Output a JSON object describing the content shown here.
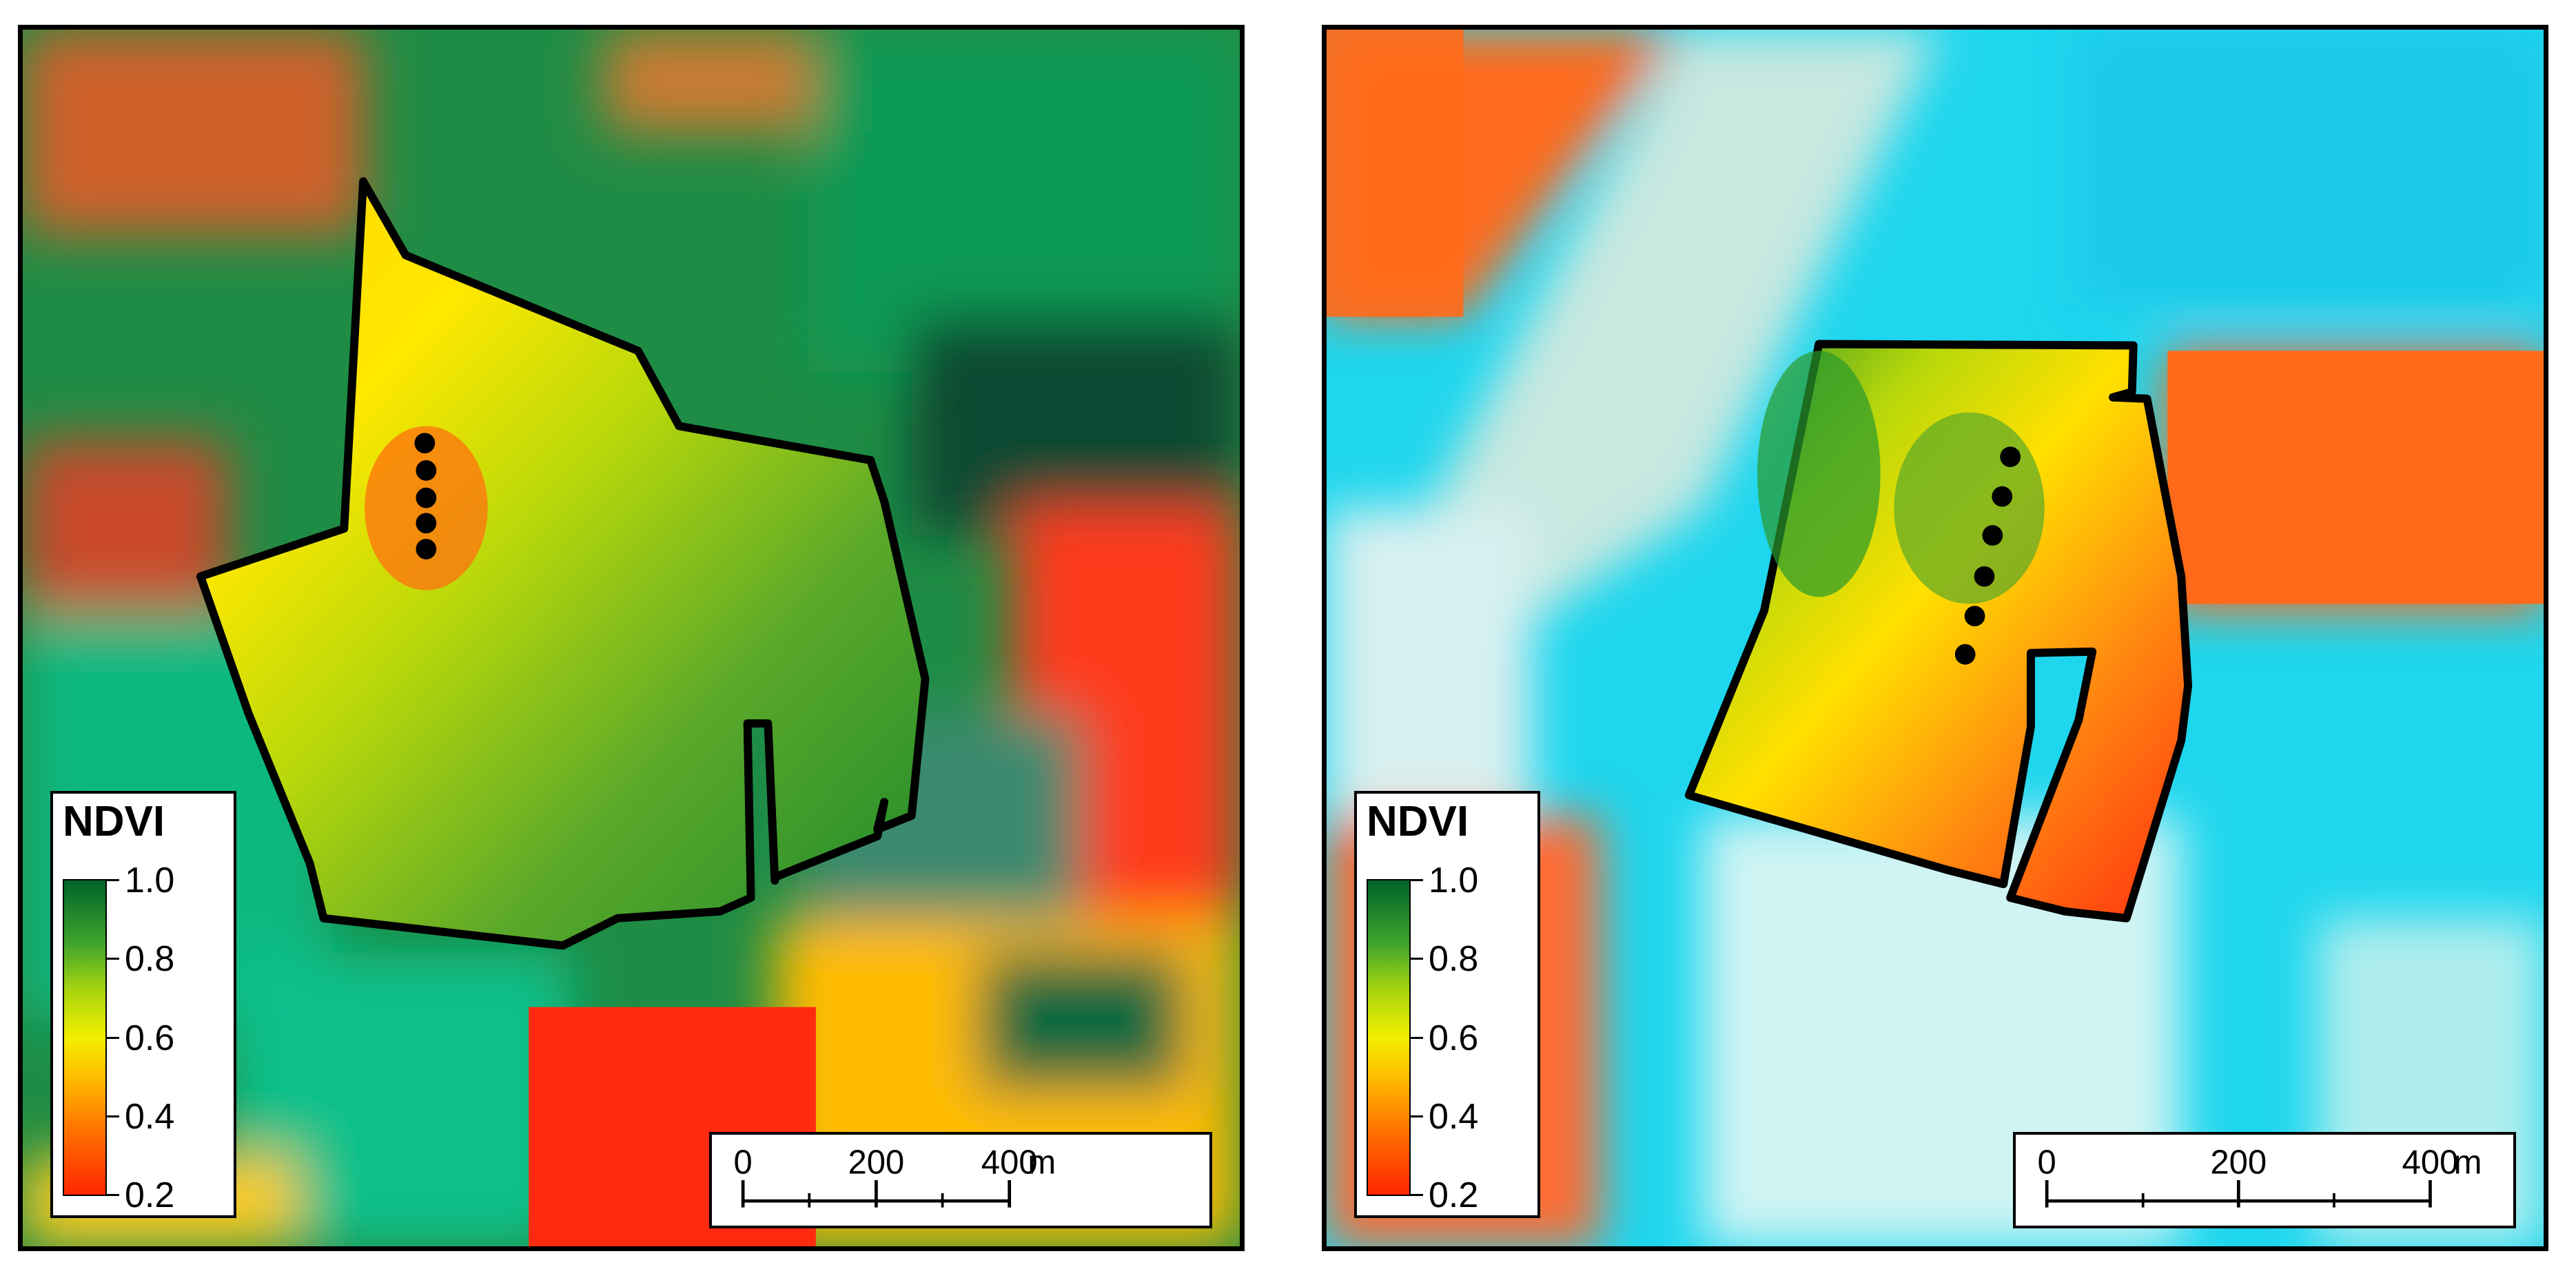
{
  "panels": [
    {
      "name": "left",
      "legend": {
        "title": "NDVI",
        "ticks": [
          "1.0",
          "0.8",
          "0.6",
          "0.4",
          "0.2"
        ]
      },
      "scalebar": {
        "labels": [
          "0",
          "200",
          "400"
        ],
        "unit": "m"
      }
    },
    {
      "name": "right",
      "legend": {
        "title": "NDVI",
        "ticks": [
          "1.0",
          "0.8",
          "0.6",
          "0.4",
          "0.2"
        ]
      },
      "scalebar": {
        "labels": [
          "0",
          "200",
          "400"
        ],
        "unit": "m"
      }
    }
  ],
  "colors": {
    "ndvi_high": "#00642a",
    "ndvi_mid": "#f4ef00",
    "ndvi_low": "#ff2600",
    "water_cyan": "#18d8f0",
    "bare_orange": "#ff6a1a",
    "vegetation_green": "#1a8a3e",
    "outline": "#000000"
  }
}
